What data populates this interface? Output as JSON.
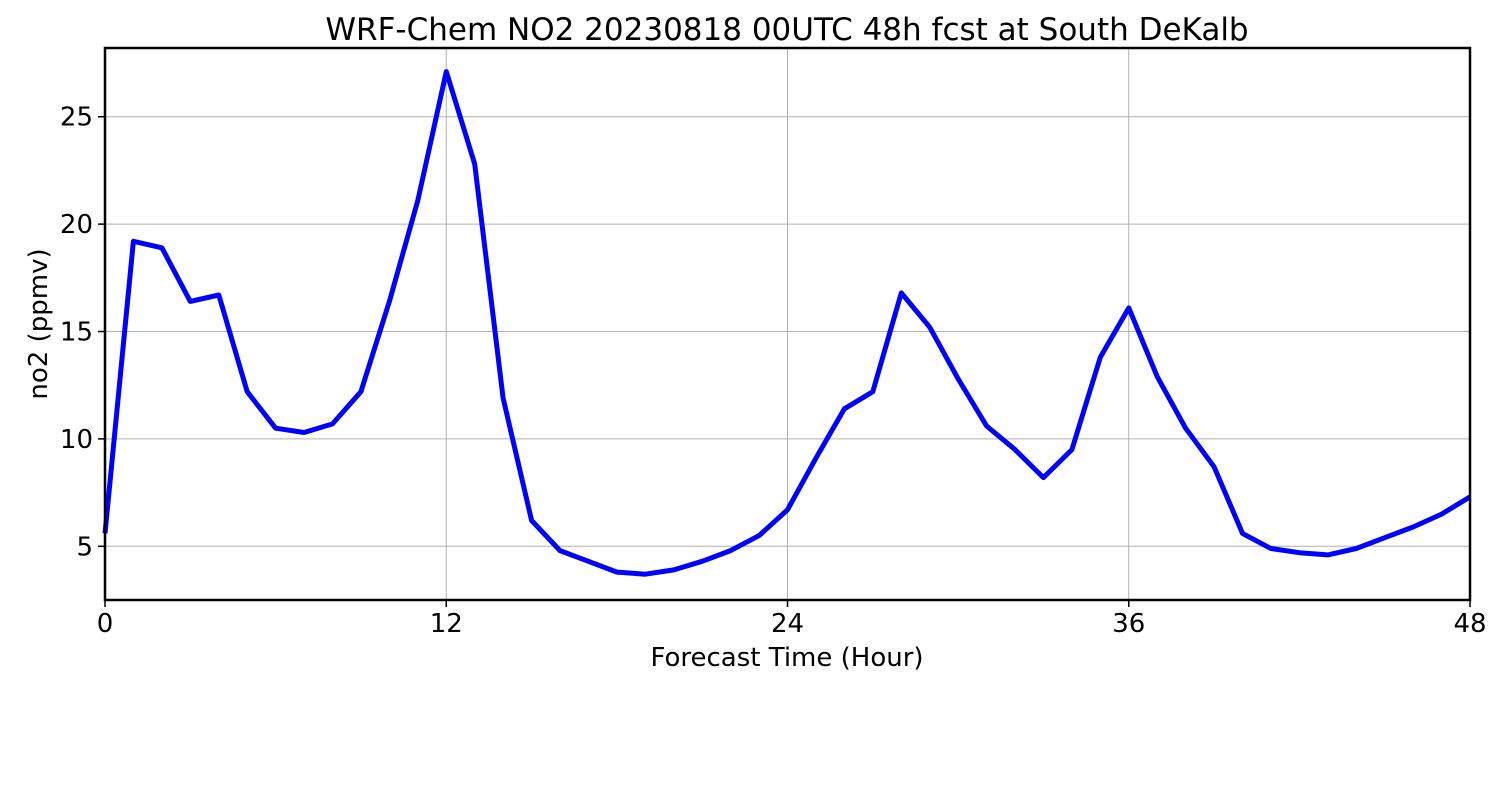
{
  "chart_data": {
    "type": "line",
    "title": "WRF-Chem NO2  20230818 00UTC 48h fcst at South DeKalb",
    "xlabel": "Forecast Time (Hour)",
    "ylabel": "no2  (ppmv)",
    "xlim": [
      0,
      48
    ],
    "ylim": [
      2.5,
      28.2
    ],
    "xticks": [
      0,
      12,
      24,
      36,
      48
    ],
    "yticks": [
      5,
      10,
      15,
      20,
      25
    ],
    "grid": true,
    "line_color": "#0000ff",
    "series": [
      {
        "x": [
          0,
          1,
          2,
          3,
          4,
          5,
          6,
          7,
          8,
          9,
          10,
          11,
          12,
          13,
          14,
          15,
          16,
          17,
          18,
          19,
          20,
          21,
          22,
          23,
          24,
          25,
          26,
          27,
          28,
          29,
          30,
          31,
          32,
          33,
          34,
          35,
          36,
          37,
          38,
          39,
          40,
          41,
          42,
          43,
          44,
          45,
          46,
          47,
          48
        ],
        "values": [
          5.6,
          19.2,
          18.9,
          16.4,
          16.7,
          12.2,
          10.5,
          10.3,
          10.7,
          12.2,
          16.4,
          21.1,
          27.1,
          22.8,
          11.9,
          6.2,
          4.8,
          4.3,
          3.8,
          3.7,
          3.9,
          4.3,
          4.8,
          5.5,
          6.7,
          9.1,
          11.4,
          12.2,
          16.8,
          15.2,
          12.8,
          10.6,
          9.5,
          8.2,
          9.5,
          13.8,
          16.1,
          12.9,
          10.5,
          8.7,
          5.6,
          4.9,
          4.7,
          4.6,
          4.9,
          5.4,
          5.9,
          6.5,
          7.3
        ]
      }
    ]
  }
}
